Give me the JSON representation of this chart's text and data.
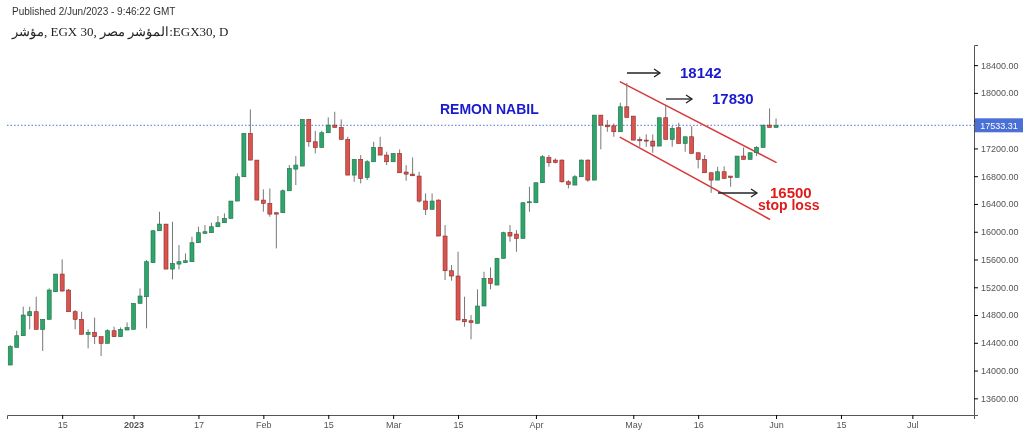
{
  "chart_data": {
    "type": "candlestick",
    "title": "مؤشر, EGX 30, المؤشر مصر:EGX30, D",
    "annotations": [
      "Published 2/Jun/2023 - 9:46:22 GMT",
      "REMON NABIL",
      "18142",
      "17830",
      "16500",
      "stop loss"
    ],
    "categories": [
      null,
      null,
      null,
      null,
      null,
      null,
      null,
      null,
      "15",
      null,
      null,
      null,
      null,
      null,
      null,
      null,
      null,
      null,
      null,
      "2023",
      null,
      null,
      null,
      null,
      null,
      null,
      null,
      null,
      null,
      "17",
      null,
      null,
      null,
      null,
      null,
      null,
      null,
      null,
      null,
      "Feb",
      null,
      null,
      null,
      null,
      null,
      null,
      null,
      null,
      null,
      "15",
      null,
      null,
      null,
      null,
      null,
      null,
      null,
      null,
      null,
      "Mar",
      null,
      null,
      null,
      null,
      null,
      null,
      null,
      null,
      null,
      "15",
      null,
      null,
      null,
      null,
      null,
      null,
      null,
      null,
      null,
      null,
      null,
      "Apr",
      null,
      null,
      null,
      null,
      null,
      null,
      null,
      null,
      null,
      null,
      null,
      null,
      null,
      null,
      "May",
      null,
      null,
      null,
      null,
      null,
      null,
      null,
      null,
      null,
      "16",
      null,
      null,
      null,
      null,
      null,
      null,
      null,
      null,
      null,
      null,
      null,
      "Jun",
      null,
      null,
      null,
      null,
      null,
      null,
      null,
      null,
      null,
      "15",
      null,
      null,
      null,
      null,
      null,
      null,
      null,
      null,
      null,
      null,
      "Jul",
      null,
      null,
      null,
      null,
      null,
      null,
      null,
      null,
      null
    ],
    "ohlc": [
      [
        14080,
        14368,
        14080,
        14344
      ],
      [
        14334,
        14574,
        14334,
        14502
      ],
      [
        14502,
        14920,
        14502,
        14800
      ],
      [
        14790,
        14920,
        14594,
        14848
      ],
      [
        14848,
        15064,
        14594,
        14594
      ],
      [
        14594,
        14738,
        14282,
        14738
      ],
      [
        14738,
        15184,
        14738,
        15160
      ],
      [
        15136,
        15390,
        15136,
        15390
      ],
      [
        15390,
        15602,
        15136,
        15146
      ],
      [
        15160,
        15174,
        14848,
        14848
      ],
      [
        14848,
        14872,
        14594,
        14738
      ],
      [
        14738,
        14848,
        14522,
        14522
      ],
      [
        14522,
        14594,
        14320,
        14550
      ],
      [
        14550,
        14762,
        14382,
        14488
      ],
      [
        14488,
        14488,
        14210,
        14392
      ],
      [
        14392,
        14594,
        14392,
        14574
      ],
      [
        14574,
        14632,
        14488,
        14488
      ],
      [
        14488,
        14622,
        14488,
        14594
      ],
      [
        14584,
        14694,
        14584,
        14618
      ],
      [
        14594,
        14968,
        14594,
        14968
      ],
      [
        14968,
        15184,
        14968,
        15074
      ],
      [
        15064,
        15592,
        14608,
        15568
      ],
      [
        15554,
        16024,
        15554,
        16014
      ],
      [
        16014,
        16288,
        16014,
        16110
      ],
      [
        16110,
        16110,
        15462,
        15462
      ],
      [
        15462,
        16144,
        15314,
        15544
      ],
      [
        15534,
        15808,
        15458,
        15568
      ],
      [
        15554,
        15688,
        15554,
        15582
      ],
      [
        15568,
        15928,
        15568,
        15842
      ],
      [
        15842,
        16072,
        15842,
        15986
      ],
      [
        15976,
        16096,
        15976,
        16000
      ],
      [
        15986,
        16130,
        15986,
        16072
      ],
      [
        16072,
        16226,
        16072,
        16130
      ],
      [
        16130,
        16264,
        16130,
        16192
      ],
      [
        16192,
        16442,
        16192,
        16442
      ],
      [
        16442,
        16840,
        16442,
        16792
      ],
      [
        16792,
        17416,
        16792,
        17416
      ],
      [
        17416,
        17762,
        17032,
        17032
      ],
      [
        17032,
        17032,
        16456,
        16456
      ],
      [
        16456,
        16610,
        16288,
        16408
      ],
      [
        16408,
        16624,
        16216,
        16254
      ],
      [
        16274,
        16274,
        15760,
        16254
      ],
      [
        16274,
        16610,
        16274,
        16590
      ],
      [
        16590,
        16960,
        16590,
        16912
      ],
      [
        16902,
        17090,
        16672,
        16960
      ],
      [
        16946,
        17618,
        16946,
        17618
      ],
      [
        17618,
        17618,
        17224,
        17296
      ],
      [
        17296,
        17454,
        17128,
        17214
      ],
      [
        17214,
        17454,
        17214,
        17426
      ],
      [
        17426,
        17646,
        17426,
        17536
      ],
      [
        17536,
        17728,
        17502,
        17502
      ],
      [
        17502,
        17618,
        17330,
        17330
      ],
      [
        17330,
        17368,
        16816,
        16816
      ],
      [
        16816,
        17042,
        16720,
        17042
      ],
      [
        17042,
        17104,
        16696,
        16768
      ],
      [
        16782,
        17032,
        16744,
        17008
      ],
      [
        17008,
        17296,
        17008,
        17214
      ],
      [
        17214,
        17368,
        17104,
        17104
      ],
      [
        17104,
        17152,
        16960,
        17008
      ],
      [
        17008,
        17128,
        17008,
        17128
      ],
      [
        17128,
        17186,
        16850,
        16850
      ],
      [
        16860,
        16960,
        16734,
        16830
      ],
      [
        16830,
        17070,
        16806,
        16806
      ],
      [
        16802,
        16864,
        16418,
        16442
      ],
      [
        16442,
        16552,
        16240,
        16322
      ],
      [
        16322,
        16552,
        16322,
        16442
      ],
      [
        16456,
        16466,
        15938,
        15938
      ],
      [
        15938,
        16096,
        15304,
        15438
      ],
      [
        15438,
        15520,
        15294,
        15362
      ],
      [
        15362,
        15712,
        14728,
        14728
      ],
      [
        14738,
        15064,
        14632,
        14704
      ],
      [
        14718,
        14800,
        14450,
        14690
      ],
      [
        14680,
        15170,
        14680,
        14930
      ],
      [
        14930,
        15424,
        14930,
        15328
      ],
      [
        15328,
        15486,
        15170,
        15256
      ],
      [
        15232,
        15626,
        15232,
        15616
      ],
      [
        15616,
        16000,
        15616,
        15986
      ],
      [
        15990,
        16096,
        15856,
        15938
      ],
      [
        15966,
        16024,
        15712,
        15904
      ],
      [
        15904,
        16418,
        15904,
        16418
      ],
      [
        16418,
        16648,
        16288,
        16432
      ],
      [
        16418,
        16706,
        16418,
        16706
      ],
      [
        16706,
        17104,
        16706,
        17080
      ],
      [
        17070,
        17104,
        16936,
        16994
      ],
      [
        17032,
        17056,
        16984,
        16998
      ],
      [
        17032,
        17042,
        16706,
        16720
      ],
      [
        16720,
        16744,
        16624,
        16682
      ],
      [
        16672,
        16816,
        16672,
        16792
      ],
      [
        16792,
        17042,
        16792,
        17032
      ],
      [
        17032,
        17042,
        16720,
        16744
      ],
      [
        16744,
        17680,
        16744,
        17680
      ],
      [
        17680,
        17680,
        17186,
        17536
      ],
      [
        17536,
        17608,
        17440,
        17512
      ],
      [
        17526,
        17560,
        17368,
        17440
      ],
      [
        17440,
        17858,
        17440,
        17800
      ],
      [
        17800,
        18142,
        17646,
        17646
      ],
      [
        17666,
        17666,
        17320,
        17320
      ],
      [
        17330,
        17368,
        17224,
        17310
      ],
      [
        17320,
        17402,
        17224,
        17306
      ],
      [
        17306,
        17402,
        17138,
        17234
      ],
      [
        17234,
        17642,
        17234,
        17642
      ],
      [
        17642,
        17830,
        17330,
        17330
      ],
      [
        17330,
        17522,
        17224,
        17488
      ],
      [
        17498,
        17570,
        17272,
        17272
      ],
      [
        17272,
        17368,
        17152,
        17368
      ],
      [
        17368,
        17522,
        17128,
        17128
      ],
      [
        17138,
        17138,
        16912,
        17042
      ],
      [
        17042,
        17104,
        16850,
        16850
      ],
      [
        16850,
        16850,
        16560,
        16744
      ],
      [
        16744,
        16936,
        16744,
        16864
      ],
      [
        16864,
        16942,
        16768,
        16768
      ],
      [
        16802,
        16802,
        16648,
        16782
      ],
      [
        16782,
        17090,
        16782,
        17090
      ],
      [
        17090,
        17214,
        17042,
        17042
      ],
      [
        17042,
        17138,
        17042,
        17138
      ],
      [
        17138,
        17234,
        17090,
        17214
      ],
      [
        17214,
        17536,
        17214,
        17536
      ],
      [
        17536,
        17776,
        17502,
        17502
      ],
      [
        17502,
        17632,
        17502,
        17533.31
      ],
      null,
      null,
      null,
      null,
      null,
      null,
      null,
      null,
      null,
      null,
      null,
      null,
      null,
      null,
      null,
      null,
      null,
      null,
      null,
      null,
      null,
      null,
      null,
      null,
      null,
      null,
      null,
      null,
      null,
      null
    ],
    "series": [
      {
        "type": "line",
        "color": "#d9383a",
        "values": [
          null,
          null,
          null,
          null,
          null,
          null,
          null,
          null,
          null,
          null,
          null,
          null,
          null,
          null,
          null,
          null,
          null,
          null,
          null,
          null,
          null,
          null,
          null,
          null,
          null,
          null,
          null,
          null,
          null,
          null,
          null,
          null,
          null,
          null,
          null,
          null,
          null,
          null,
          null,
          null,
          null,
          null,
          null,
          null,
          null,
          null,
          null,
          null,
          null,
          null,
          null,
          null,
          null,
          null,
          null,
          null,
          null,
          null,
          null,
          null,
          null,
          null,
          null,
          null,
          null,
          null,
          null,
          null,
          null,
          null,
          null,
          null,
          null,
          null,
          null,
          null,
          null,
          null,
          null,
          null,
          null,
          null,
          null,
          null,
          null,
          null,
          null,
          null,
          null,
          null,
          null,
          null,
          null,
          null,
          18160,
          null,
          null,
          null,
          null,
          null,
          null,
          null,
          null,
          null,
          null,
          null,
          null,
          null,
          null,
          null,
          null,
          null,
          null,
          null,
          null,
          null,
          null,
          null,
          17000,
          null,
          null,
          null,
          null,
          null,
          null,
          null,
          null,
          null,
          null,
          null,
          null,
          null,
          null,
          null,
          null,
          null,
          null,
          null,
          null,
          null,
          null,
          null,
          null,
          null,
          null,
          null,
          null,
          null,
          null
        ]
      },
      {
        "type": "line",
        "color": "#d9383a",
        "values": [
          null,
          null,
          null,
          null,
          null,
          null,
          null,
          null,
          null,
          null,
          null,
          null,
          null,
          null,
          null,
          null,
          null,
          null,
          null,
          null,
          null,
          null,
          null,
          null,
          null,
          null,
          null,
          null,
          null,
          null,
          null,
          null,
          null,
          null,
          null,
          null,
          null,
          null,
          null,
          null,
          null,
          null,
          null,
          null,
          null,
          null,
          null,
          null,
          null,
          null,
          null,
          null,
          null,
          null,
          null,
          null,
          null,
          null,
          null,
          null,
          null,
          null,
          null,
          null,
          null,
          null,
          null,
          null,
          null,
          null,
          null,
          null,
          null,
          null,
          null,
          null,
          null,
          null,
          null,
          null,
          null,
          null,
          null,
          null,
          null,
          null,
          null,
          null,
          null,
          null,
          null,
          null,
          null,
          null,
          17360,
          null,
          null,
          null,
          null,
          null,
          null,
          null,
          null,
          null,
          null,
          null,
          null,
          null,
          null,
          null,
          null,
          null,
          null,
          null,
          null,
          null,
          null,
          16180,
          null,
          null,
          null,
          null,
          null,
          null,
          null,
          null,
          null,
          null,
          null,
          null,
          null,
          null,
          null,
          null,
          null,
          null,
          null,
          null,
          null,
          null,
          null,
          null,
          null,
          null,
          null,
          null,
          null,
          null,
          null
        ]
      }
    ],
    "ylim": [
      13360,
      18690
    ],
    "yticks": [
      {
        "value": 13600,
        "label": "13600.00"
      },
      {
        "value": 14000,
        "label": "14000.00"
      },
      {
        "value": 14400,
        "label": "14400.00"
      },
      {
        "value": 14800,
        "label": "14800.00"
      },
      {
        "value": 15200,
        "label": "15200.00"
      },
      {
        "value": 15600,
        "label": "15600.00"
      },
      {
        "value": 16000,
        "label": "16000.00"
      },
      {
        "value": 16400,
        "label": "16400.00"
      },
      {
        "value": 16800,
        "label": "16800.00"
      },
      {
        "value": 17200,
        "label": "17200.00"
      },
      {
        "value": 17600,
        "label": null
      },
      {
        "value": 18000,
        "label": "18000.00"
      },
      {
        "value": 18400,
        "label": "18400.00"
      }
    ],
    "ref_lines": [
      {
        "axis": "y",
        "value": 17533.31,
        "label": "17533.31",
        "color": "#4a6fd6",
        "line_style": "dotted"
      }
    ],
    "grid": false
  }
}
